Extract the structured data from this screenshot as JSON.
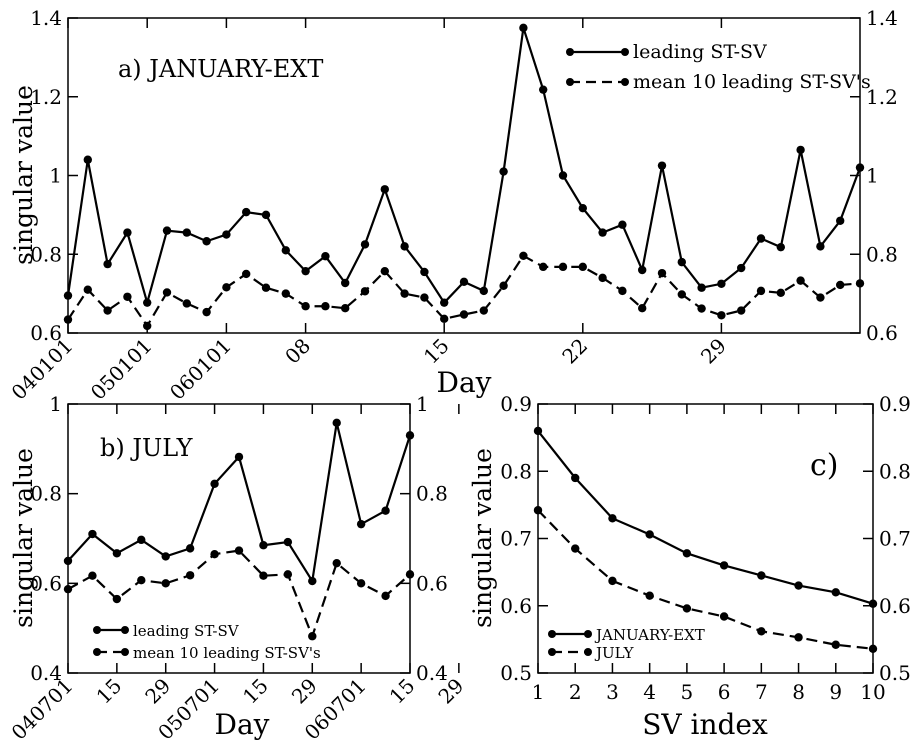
{
  "chart_data": [
    {
      "id": "a",
      "type": "line",
      "title": "a) JANUARY-EXT",
      "xlabel": "Day",
      "ylabel": "singular value",
      "ylim": [
        0.6,
        1.4
      ],
      "yticks": [
        0.6,
        0.8,
        1,
        1.2,
        1.4
      ],
      "ytick_labels": [
        "0.6",
        "0.8",
        "1",
        "1.2",
        "1.4"
      ],
      "xticks": [
        {
          "x": 1,
          "label": "040101"
        },
        {
          "x": 5,
          "label": "050101"
        },
        {
          "x": 9,
          "label": "060101"
        },
        {
          "x": 13,
          "label": "08"
        },
        {
          "x": 20,
          "label": "15"
        },
        {
          "x": 27,
          "label": "22"
        },
        {
          "x": 34,
          "label": "29"
        }
      ],
      "xlim": [
        1,
        36
      ],
      "grid": false,
      "legend_position": "top-right",
      "series": [
        {
          "name": "leading ST-SV",
          "style": "solid",
          "values": [
            0.695,
            1.04,
            0.775,
            0.855,
            0.677,
            0.86,
            0.855,
            0.833,
            0.85,
            0.907,
            0.9,
            0.81,
            0.757,
            0.795,
            0.727,
            0.825,
            0.965,
            0.82,
            0.755,
            0.677,
            0.73,
            0.707,
            1.01,
            1.375,
            1.218,
            1.0,
            0.917,
            0.855,
            0.875,
            0.76,
            1.025,
            0.78,
            0.715,
            0.725,
            0.765,
            0.84,
            0.818,
            1.065,
            0.82,
            0.885,
            1.02
          ]
        },
        {
          "name": "mean 10 leading ST-SV's",
          "style": "dashed",
          "values": [
            0.634,
            0.71,
            0.657,
            0.692,
            0.618,
            0.703,
            0.675,
            0.653,
            0.716,
            0.75,
            0.715,
            0.7,
            0.668,
            0.668,
            0.663,
            0.706,
            0.757,
            0.7,
            0.69,
            0.636,
            0.647,
            0.657,
            0.72,
            0.796,
            0.768,
            0.768,
            0.768,
            0.74,
            0.707,
            0.663,
            0.752,
            0.698,
            0.662,
            0.645,
            0.657,
            0.707,
            0.702,
            0.733,
            0.69,
            0.722,
            0.726
          ]
        }
      ]
    },
    {
      "id": "b",
      "type": "line",
      "title": "b) JULY",
      "xlabel": "Day",
      "ylabel": "singular value",
      "ylim": [
        0.4,
        1.0
      ],
      "yticks": [
        0.4,
        0.6,
        0.8,
        1
      ],
      "ytick_labels": [
        "0.4",
        "0.6",
        "0.8",
        "1"
      ],
      "xticks": [
        {
          "x": 1,
          "label": "040701"
        },
        {
          "x": 3,
          "label": "15"
        },
        {
          "x": 5,
          "label": "29"
        },
        {
          "x": 7,
          "label": "050701"
        },
        {
          "x": 9,
          "label": "15"
        },
        {
          "x": 11,
          "label": "29"
        },
        {
          "x": 13,
          "label": "060701"
        },
        {
          "x": 15,
          "label": "15"
        },
        {
          "x": 17,
          "label": "29"
        }
      ],
      "xlim": [
        1,
        17
      ],
      "grid": false,
      "legend_position": "bottom-left",
      "series": [
        {
          "name": "leading ST-SV",
          "style": "solid",
          "values": [
            0.65,
            0.71,
            0.667,
            0.697,
            0.66,
            0.678,
            0.822,
            0.882,
            0.685,
            0.692,
            0.605,
            0.958,
            0.732,
            0.762,
            0.93
          ]
        },
        {
          "name": "mean 10 leading ST-SV's",
          "style": "dashed",
          "values": [
            0.587,
            0.617,
            0.565,
            0.607,
            0.6,
            0.618,
            0.665,
            0.673,
            0.617,
            0.62,
            0.482,
            0.645,
            0.6,
            0.572,
            0.62
          ]
        }
      ]
    },
    {
      "id": "c",
      "type": "line",
      "title": "c)",
      "xlabel": "SV index",
      "ylabel": "singular value",
      "ylim": [
        0.5,
        0.9
      ],
      "yticks": [
        0.5,
        0.6,
        0.7,
        0.8,
        0.9
      ],
      "ytick_labels": [
        "0.5",
        "0.6",
        "0.7",
        "0.8",
        "0.9"
      ],
      "x": [
        1,
        2,
        3,
        4,
        5,
        6,
        7,
        8,
        9,
        10
      ],
      "xlim": [
        1,
        10
      ],
      "grid": false,
      "legend_position": "bottom-left",
      "series": [
        {
          "name": "JANUARY-EXT",
          "style": "solid",
          "values": [
            0.86,
            0.79,
            0.73,
            0.706,
            0.678,
            0.66,
            0.645,
            0.63,
            0.62,
            0.603
          ]
        },
        {
          "name": "JULY",
          "style": "dashed",
          "values": [
            0.742,
            0.685,
            0.637,
            0.615,
            0.596,
            0.584,
            0.562,
            0.553,
            0.542,
            0.536
          ]
        }
      ]
    }
  ]
}
